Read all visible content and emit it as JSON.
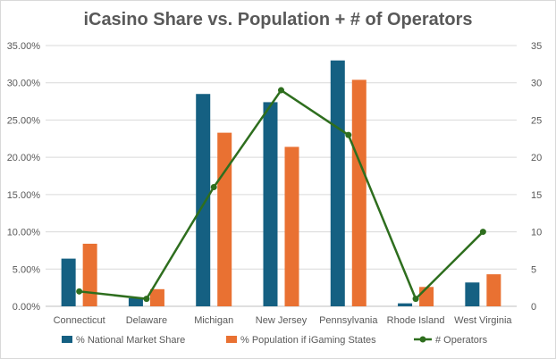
{
  "chart_data": {
    "type": "bar",
    "title": "iCasino Share vs. Population + # of Operators",
    "categories": [
      "Connecticut",
      "Delaware",
      "Michigan",
      "New Jersey",
      "Pennsylvania",
      "Rhode Island",
      "West Virginia"
    ],
    "series": [
      {
        "name": "% National Market Share",
        "type": "bar",
        "axis": "left",
        "color": "#156082",
        "values": [
          0.064,
          0.011,
          0.285,
          0.274,
          0.33,
          0.004,
          0.032
        ]
      },
      {
        "name": "% Population if iGaming States",
        "type": "bar",
        "axis": "left",
        "color": "#E97132",
        "values": [
          0.084,
          0.023,
          0.233,
          0.214,
          0.304,
          0.026,
          0.043
        ]
      },
      {
        "name": "# Operators",
        "type": "line",
        "axis": "right",
        "color": "#2E6E1E",
        "values": [
          2,
          1,
          16,
          29,
          23,
          1,
          10
        ]
      }
    ],
    "y_left": {
      "ylim": [
        0,
        0.35
      ],
      "ticks": [
        "0.00%",
        "5.00%",
        "10.00%",
        "15.00%",
        "20.00%",
        "25.00%",
        "30.00%",
        "35.00%"
      ]
    },
    "y_right": {
      "ylim": [
        0,
        35
      ],
      "ticks": [
        "0",
        "5",
        "10",
        "15",
        "20",
        "25",
        "30",
        "35"
      ]
    },
    "grid": true,
    "legend_position": "bottom"
  }
}
